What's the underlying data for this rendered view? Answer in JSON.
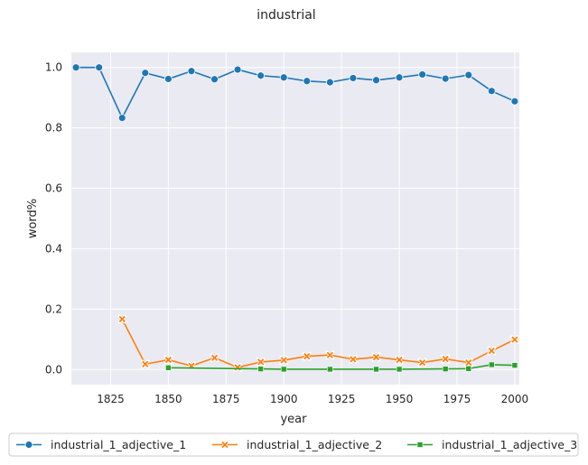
{
  "chart_data": {
    "type": "line",
    "title": "industrial",
    "xlabel": "year",
    "ylabel": "word%",
    "xlim": [
      1808,
      2002
    ],
    "ylim": [
      -0.05,
      1.05
    ],
    "xticks": [
      1825,
      1850,
      1875,
      1900,
      1925,
      1950,
      1975,
      2000
    ],
    "yticks": [
      0.0,
      0.2,
      0.4,
      0.6,
      0.8,
      1.0
    ],
    "xtick_labels": [
      "1825",
      "1850",
      "1875",
      "1900",
      "1925",
      "1950",
      "1975",
      "2000"
    ],
    "ytick_labels": [
      "0.0",
      "0.2",
      "0.4",
      "0.6",
      "0.8",
      "1.0"
    ],
    "grid": true,
    "legend_position": "bottom",
    "series": [
      {
        "name": "industrial_1_adjective_1",
        "color": "#1f77b4",
        "marker": "circle",
        "x": [
          1810,
          1820,
          1830,
          1840,
          1850,
          1860,
          1870,
          1880,
          1890,
          1900,
          1910,
          1920,
          1930,
          1940,
          1950,
          1960,
          1970,
          1980,
          1990,
          2000
        ],
        "y": [
          1.0,
          1.0,
          0.833,
          0.982,
          0.962,
          0.988,
          0.961,
          0.993,
          0.973,
          0.967,
          0.955,
          0.951,
          0.965,
          0.958,
          0.967,
          0.977,
          0.963,
          0.975,
          0.922,
          0.888
        ]
      },
      {
        "name": "industrial_1_adjective_2",
        "color": "#ff7f0e",
        "marker": "x",
        "x": [
          1830,
          1840,
          1850,
          1860,
          1870,
          1880,
          1890,
          1900,
          1910,
          1920,
          1930,
          1940,
          1950,
          1960,
          1970,
          1980,
          1990,
          2000
        ],
        "y": [
          0.167,
          0.018,
          0.032,
          0.012,
          0.039,
          0.007,
          0.025,
          0.031,
          0.044,
          0.048,
          0.034,
          0.041,
          0.032,
          0.023,
          0.035,
          0.023,
          0.062,
          0.099
        ]
      },
      {
        "name": "industrial_1_adjective_3",
        "color": "#2ca02c",
        "marker": "square",
        "x": [
          1850,
          1890,
          1900,
          1920,
          1940,
          1950,
          1970,
          1980,
          1990,
          2000
        ],
        "y": [
          0.006,
          0.002,
          0.001,
          0.001,
          0.001,
          0.001,
          0.002,
          0.003,
          0.016,
          0.014
        ]
      }
    ]
  }
}
